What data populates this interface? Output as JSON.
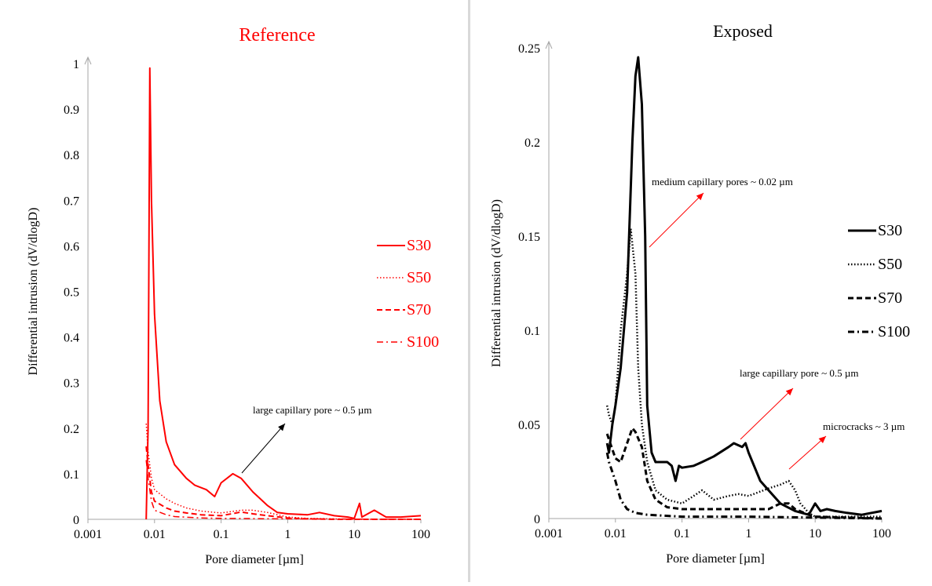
{
  "chart_data": [
    {
      "type": "line",
      "title": "Reference",
      "xlabel": "Pore diameter [µm]",
      "ylabel": "Differential intrusion  (dV/dlogD)",
      "x_scale": "log",
      "xlim": [
        0.001,
        100
      ],
      "ylim": [
        0,
        1
      ],
      "x_ticks": [
        "0.001",
        "0.01",
        "0.1",
        "1",
        "10",
        "100"
      ],
      "y_ticks": [
        "0",
        "0.1",
        "0.2",
        "0.3",
        "0.4",
        "0.5",
        "0.6",
        "0.7",
        "0.8",
        "0.9",
        "1"
      ],
      "color": "#ff0000",
      "legend_position": "right",
      "series": [
        {
          "name": "S30",
          "style": "solid",
          "points": [
            [
              0.0075,
              0
            ],
            [
              0.008,
              0.2
            ],
            [
              0.0085,
              0.99
            ],
            [
              0.009,
              0.7
            ],
            [
              0.01,
              0.45
            ],
            [
              0.012,
              0.26
            ],
            [
              0.015,
              0.17
            ],
            [
              0.02,
              0.12
            ],
            [
              0.03,
              0.09
            ],
            [
              0.04,
              0.075
            ],
            [
              0.06,
              0.065
            ],
            [
              0.08,
              0.05
            ],
            [
              0.1,
              0.08
            ],
            [
              0.15,
              0.1
            ],
            [
              0.2,
              0.09
            ],
            [
              0.3,
              0.06
            ],
            [
              0.5,
              0.03
            ],
            [
              0.7,
              0.015
            ],
            [
              1,
              0.012
            ],
            [
              2,
              0.01
            ],
            [
              3,
              0.015
            ],
            [
              5,
              0.008
            ],
            [
              8,
              0.005
            ],
            [
              10,
              0.002
            ],
            [
              12,
              0.035
            ],
            [
              13,
              0.005
            ],
            [
              20,
              0.02
            ],
            [
              30,
              0.005
            ],
            [
              50,
              0.005
            ],
            [
              100,
              0.008
            ]
          ]
        },
        {
          "name": "S50",
          "style": "dotted",
          "points": [
            [
              0.0075,
              0.21
            ],
            [
              0.008,
              0.15
            ],
            [
              0.009,
              0.09
            ],
            [
              0.01,
              0.065
            ],
            [
              0.015,
              0.045
            ],
            [
              0.02,
              0.035
            ],
            [
              0.03,
              0.025
            ],
            [
              0.05,
              0.018
            ],
            [
              0.1,
              0.014
            ],
            [
              0.2,
              0.02
            ],
            [
              0.3,
              0.02
            ],
            [
              0.5,
              0.015
            ],
            [
              1,
              0.005
            ],
            [
              2,
              0.002
            ],
            [
              5,
              0.001
            ],
            [
              10,
              0
            ],
            [
              100,
              0
            ]
          ]
        },
        {
          "name": "S70",
          "style": "dashed",
          "points": [
            [
              0.0075,
              0.16
            ],
            [
              0.008,
              0.12
            ],
            [
              0.009,
              0.06
            ],
            [
              0.01,
              0.04
            ],
            [
              0.015,
              0.025
            ],
            [
              0.02,
              0.018
            ],
            [
              0.03,
              0.014
            ],
            [
              0.05,
              0.01
            ],
            [
              0.1,
              0.008
            ],
            [
              0.2,
              0.016
            ],
            [
              0.3,
              0.012
            ],
            [
              0.5,
              0.008
            ],
            [
              1,
              0.003
            ],
            [
              2,
              0.001
            ],
            [
              5,
              0
            ],
            [
              100,
              0
            ]
          ]
        },
        {
          "name": "S100",
          "style": "dashdot",
          "points": [
            [
              0.0075,
              0.13
            ],
            [
              0.008,
              0.09
            ],
            [
              0.009,
              0.04
            ],
            [
              0.01,
              0.02
            ],
            [
              0.015,
              0.01
            ],
            [
              0.02,
              0.006
            ],
            [
              0.05,
              0.003
            ],
            [
              0.1,
              0.002
            ],
            [
              1,
              0.001
            ],
            [
              100,
              0
            ]
          ]
        }
      ],
      "annotations": [
        {
          "text": "large capillary pore ~ 0.5 µm",
          "arrow_color": "#000000"
        }
      ]
    },
    {
      "type": "line",
      "title": "Exposed",
      "xlabel": "Pore diameter [µm]",
      "ylabel": "Differential intrusion  (dV/dlogD)",
      "x_scale": "log",
      "xlim": [
        0.001,
        100
      ],
      "ylim": [
        0,
        0.25
      ],
      "x_ticks": [
        "0.001",
        "0.01",
        "0.1",
        "1",
        "10",
        "100"
      ],
      "y_ticks": [
        "0",
        "0.05",
        "0.1",
        "0.15",
        "0.2",
        "0.25"
      ],
      "color": "#000000",
      "legend_position": "right",
      "series": [
        {
          "name": "S30",
          "style": "solid",
          "points": [
            [
              0.0075,
              0.04
            ],
            [
              0.008,
              0.035
            ],
            [
              0.009,
              0.05
            ],
            [
              0.01,
              0.06
            ],
            [
              0.012,
              0.08
            ],
            [
              0.015,
              0.12
            ],
            [
              0.018,
              0.2
            ],
            [
              0.02,
              0.235
            ],
            [
              0.022,
              0.245
            ],
            [
              0.025,
              0.22
            ],
            [
              0.028,
              0.15
            ],
            [
              0.03,
              0.06
            ],
            [
              0.035,
              0.035
            ],
            [
              0.04,
              0.03
            ],
            [
              0.06,
              0.03
            ],
            [
              0.07,
              0.028
            ],
            [
              0.08,
              0.02
            ],
            [
              0.09,
              0.028
            ],
            [
              0.1,
              0.027
            ],
            [
              0.15,
              0.028
            ],
            [
              0.2,
              0.03
            ],
            [
              0.3,
              0.033
            ],
            [
              0.5,
              0.038
            ],
            [
              0.6,
              0.04
            ],
            [
              0.8,
              0.038
            ],
            [
              0.9,
              0.04
            ],
            [
              1,
              0.035
            ],
            [
              1.5,
              0.02
            ],
            [
              2,
              0.015
            ],
            [
              3,
              0.008
            ],
            [
              5,
              0.004
            ],
            [
              8,
              0.002
            ],
            [
              10,
              0.008
            ],
            [
              12,
              0.004
            ],
            [
              15,
              0.005
            ],
            [
              20,
              0.004
            ],
            [
              30,
              0.003
            ],
            [
              50,
              0.002
            ],
            [
              100,
              0.004
            ]
          ]
        },
        {
          "name": "S50",
          "style": "dotted",
          "points": [
            [
              0.0075,
              0.06
            ],
            [
              0.008,
              0.055
            ],
            [
              0.009,
              0.05
            ],
            [
              0.01,
              0.06
            ],
            [
              0.012,
              0.1
            ],
            [
              0.015,
              0.13
            ],
            [
              0.017,
              0.154
            ],
            [
              0.02,
              0.13
            ],
            [
              0.022,
              0.08
            ],
            [
              0.025,
              0.05
            ],
            [
              0.03,
              0.03
            ],
            [
              0.04,
              0.015
            ],
            [
              0.06,
              0.01
            ],
            [
              0.1,
              0.008
            ],
            [
              0.15,
              0.012
            ],
            [
              0.2,
              0.015
            ],
            [
              0.3,
              0.01
            ],
            [
              0.5,
              0.012
            ],
            [
              0.7,
              0.013
            ],
            [
              1,
              0.012
            ],
            [
              2,
              0.016
            ],
            [
              3,
              0.018
            ],
            [
              4,
              0.02
            ],
            [
              5,
              0.015
            ],
            [
              6,
              0.008
            ],
            [
              8,
              0.003
            ],
            [
              10,
              0.001
            ],
            [
              100,
              0.001
            ]
          ]
        },
        {
          "name": "S70",
          "style": "dashed",
          "points": [
            [
              0.0075,
              0.045
            ],
            [
              0.008,
              0.042
            ],
            [
              0.01,
              0.032
            ],
            [
              0.012,
              0.03
            ],
            [
              0.015,
              0.04
            ],
            [
              0.018,
              0.048
            ],
            [
              0.02,
              0.046
            ],
            [
              0.025,
              0.038
            ],
            [
              0.03,
              0.02
            ],
            [
              0.04,
              0.01
            ],
            [
              0.06,
              0.006
            ],
            [
              0.1,
              0.005
            ],
            [
              0.2,
              0.005
            ],
            [
              0.5,
              0.005
            ],
            [
              1,
              0.005
            ],
            [
              2,
              0.005
            ],
            [
              3,
              0.008
            ],
            [
              4,
              0.008
            ],
            [
              5,
              0.005
            ],
            [
              8,
              0.002
            ],
            [
              10,
              0.001
            ],
            [
              100,
              0
            ]
          ]
        },
        {
          "name": "S100",
          "style": "dashdot",
          "points": [
            [
              0.0075,
              0.035
            ],
            [
              0.008,
              0.03
            ],
            [
              0.01,
              0.02
            ],
            [
              0.012,
              0.01
            ],
            [
              0.015,
              0.005
            ],
            [
              0.02,
              0.003
            ],
            [
              0.03,
              0.002
            ],
            [
              0.1,
              0.001
            ],
            [
              1,
              0.001
            ],
            [
              100,
              0
            ]
          ]
        }
      ],
      "annotations": [
        {
          "text": "medium capillary pores ~ 0.02 µm",
          "arrow_color": "#ff0000"
        },
        {
          "text": "large capillary pore ~ 0.5 µm",
          "arrow_color": "#ff0000"
        },
        {
          "text": "microcracks ~ 3 µm",
          "arrow_color": "#ff0000"
        }
      ]
    }
  ]
}
